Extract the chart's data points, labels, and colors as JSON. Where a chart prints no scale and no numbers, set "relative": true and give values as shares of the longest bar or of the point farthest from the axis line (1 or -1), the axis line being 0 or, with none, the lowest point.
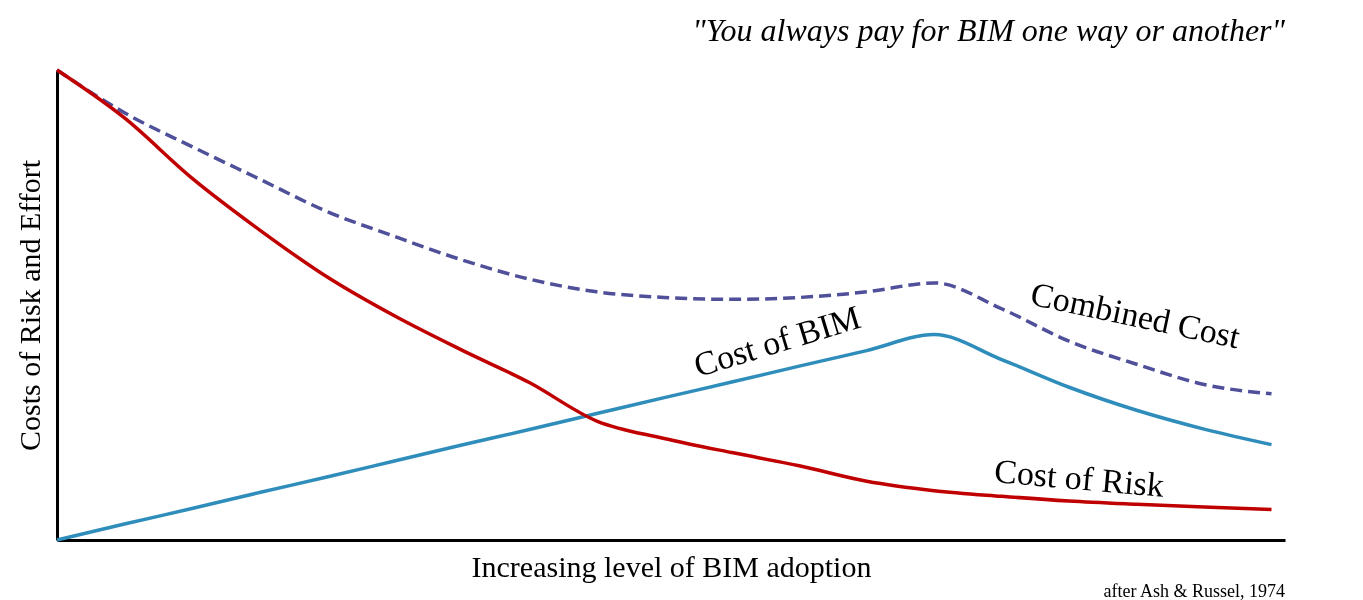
{
  "chart_data": {
    "type": "line",
    "title": "\"You always pay for BIM one way or another\"",
    "xlabel": "Increasing level of BIM adoption",
    "ylabel": "Costs of Risk and Effort",
    "annotations": [
      "after Ash & Russel, 1974"
    ],
    "relative": true,
    "grid": false,
    "marker": "none",
    "categories": [
      null,
      null,
      null,
      null,
      null,
      null,
      null,
      null,
      null,
      null,
      null,
      null,
      null,
      null,
      null,
      null,
      null,
      null,
      null
    ],
    "series": [
      {
        "name": "Combined Cost",
        "color": "#4f4f9a",
        "line_style": "dashed",
        "values": [
          1.0,
          0.909,
          0.837,
          0.768,
          0.699,
          0.646,
          0.596,
          0.555,
          0.528,
          0.516,
          0.512,
          0.516,
          0.528,
          0.547,
          0.492,
          0.423,
          0.374,
          0.331,
          0.311
        ]
      },
      {
        "name": "Cost of BIM",
        "color": "#2f8dbb",
        "line_style": "solid",
        "values": [
          0,
          0.034,
          0.067,
          0.101,
          0.134,
          0.168,
          0.202,
          0.235,
          0.269,
          0.303,
          0.336,
          0.37,
          0.403,
          0.437,
          0.384,
          0.325,
          0.276,
          0.236,
          0.203
        ]
      },
      {
        "name": "Cost of Risk",
        "color": "#c00000",
        "line_style": "solid",
        "values": [
          1.0,
          0.898,
          0.77,
          0.66,
          0.56,
          0.477,
          0.404,
          0.335,
          0.253,
          0.216,
          0.186,
          0.158,
          0.125,
          0.105,
          0.093,
          0.083,
          0.076,
          0.07,
          0.065
        ]
      }
    ]
  }
}
